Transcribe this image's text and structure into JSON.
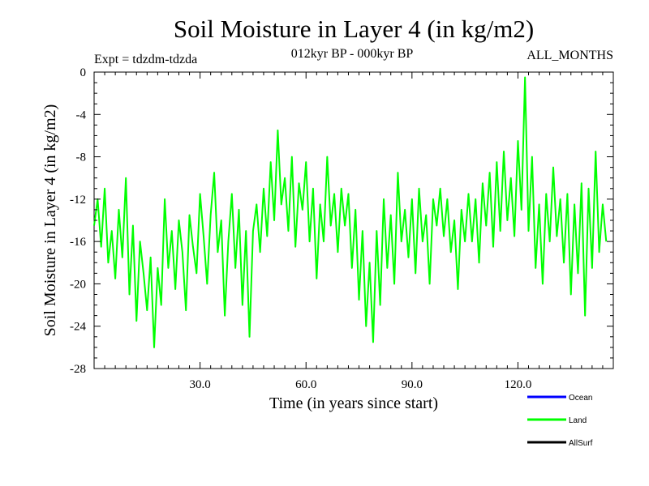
{
  "chart_data": {
    "type": "line",
    "title": "Soil Moisture in Layer 4 (in kg/m2)",
    "subtitle": "012kyr BP - 000kyr BP",
    "left_note": "Expt = tdzdm-tdzda",
    "right_note": "ALL_MONTHS",
    "xlabel": "Time (in years since start)",
    "ylabel": "Soil Moisture in Layer 4 (in kg/m2)",
    "xlim": [
      0,
      147
    ],
    "ylim": [
      -28,
      0
    ],
    "x_ticks": [
      30,
      60,
      90,
      120
    ],
    "x_tick_labels": [
      "30.0",
      "60.0",
      "90.0",
      "120.0"
    ],
    "y_ticks": [
      0,
      -4,
      -8,
      -12,
      -16,
      -20,
      -24,
      -28
    ],
    "y_tick_labels": [
      "0",
      "-4",
      "-8",
      "-12",
      "-16",
      "-20",
      "-24",
      "-28"
    ],
    "legend_position": "bottom-right",
    "legend": [
      {
        "name": "Ocean",
        "color": "#0000ff"
      },
      {
        "name": "Land",
        "color": "#00ff00"
      },
      {
        "name": "AllSurf",
        "color": "#000000"
      }
    ],
    "series": [
      {
        "name": "Land",
        "color": "#00ff00",
        "x_start": 0,
        "x_step": 1,
        "values": [
          -14.5,
          -12.0,
          -16.5,
          -11.0,
          -18.0,
          -15.0,
          -19.5,
          -13.0,
          -17.5,
          -10.0,
          -21.0,
          -14.5,
          -23.5,
          -16.0,
          -19.0,
          -22.5,
          -17.5,
          -26.0,
          -18.5,
          -22.0,
          -12.0,
          -18.5,
          -15.0,
          -20.5,
          -14.0,
          -17.0,
          -22.5,
          -13.5,
          -16.5,
          -19.0,
          -11.5,
          -15.5,
          -20.0,
          -13.5,
          -9.5,
          -17.0,
          -14.0,
          -23.0,
          -16.0,
          -11.5,
          -18.5,
          -13.0,
          -22.0,
          -15.0,
          -25.0,
          -15.0,
          -12.5,
          -17.0,
          -11.0,
          -15.5,
          -8.5,
          -14.0,
          -5.5,
          -12.5,
          -10.0,
          -15.0,
          -8.0,
          -16.5,
          -10.5,
          -13.0,
          -8.5,
          -16.0,
          -11.0,
          -19.5,
          -12.5,
          -16.0,
          -8.0,
          -14.5,
          -11.5,
          -17.0,
          -11.0,
          -14.5,
          -11.5,
          -18.5,
          -13.0,
          -21.5,
          -15.0,
          -24.0,
          -18.0,
          -25.5,
          -15.0,
          -22.0,
          -12.0,
          -18.5,
          -13.5,
          -20.0,
          -9.5,
          -16.0,
          -13.0,
          -17.5,
          -12.0,
          -19.0,
          -11.0,
          -16.0,
          -13.5,
          -20.0,
          -12.0,
          -14.5,
          -11.0,
          -15.5,
          -12.0,
          -17.0,
          -14.0,
          -20.5,
          -13.0,
          -16.0,
          -11.5,
          -16.0,
          -12.0,
          -18.0,
          -10.5,
          -14.5,
          -9.5,
          -16.5,
          -8.5,
          -15.0,
          -7.5,
          -14.0,
          -10.0,
          -15.5,
          -6.5,
          -13.0,
          -0.5,
          -15.0,
          -8.0,
          -18.5,
          -12.5,
          -20.0,
          -11.5,
          -16.0,
          -9.0,
          -15.5,
          -12.0,
          -18.0,
          -11.5,
          -21.0,
          -12.5,
          -19.0,
          -10.5,
          -23.0,
          -11.0,
          -18.5,
          -7.5,
          -17.0,
          -12.5,
          -16.0
        ]
      }
    ]
  }
}
